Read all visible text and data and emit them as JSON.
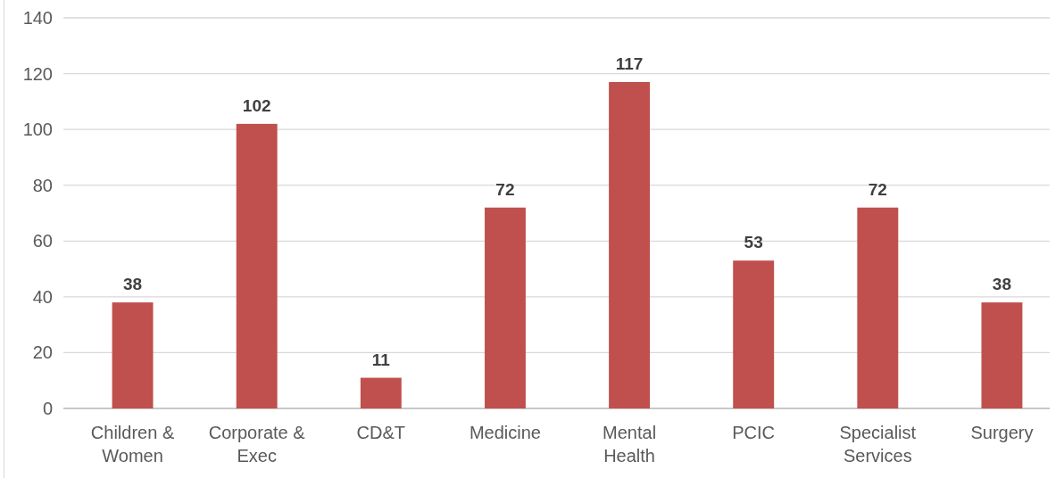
{
  "chart_data": {
    "type": "bar",
    "categories": [
      "Children & Women",
      "Corporate & Exec",
      "CD&T",
      "Medicine",
      "Mental Health",
      "PCIC",
      "Specialist Services",
      "Surgery"
    ],
    "values": [
      38,
      102,
      11,
      72,
      117,
      53,
      72,
      38
    ],
    "color": "#c0504d",
    "ylim": [
      0,
      140
    ],
    "yticks": [
      0,
      20,
      40,
      60,
      80,
      100,
      120,
      140
    ],
    "grid": "y",
    "data_labels": true
  }
}
